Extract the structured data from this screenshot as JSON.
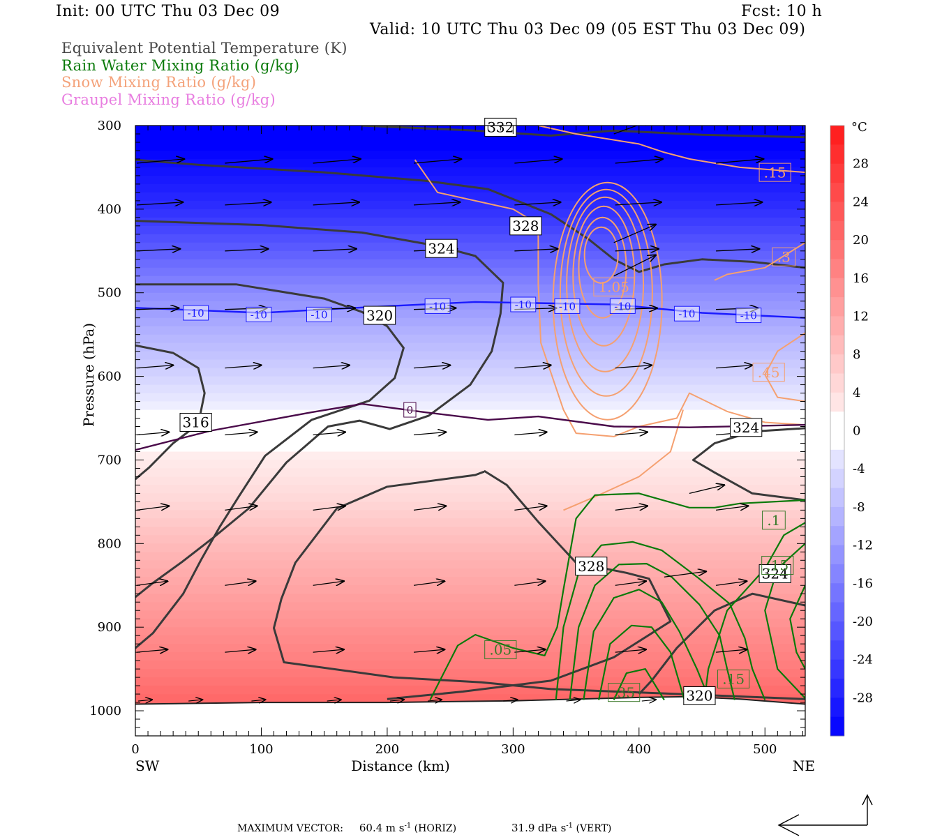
{
  "header": {
    "init": "Init: 00 UTC Thu 03 Dec 09",
    "fcst": "Fcst:   10 h",
    "valid": "Valid: 10 UTC Thu 03 Dec 09 (05 EST Thu 03 Dec 09)"
  },
  "legend": [
    {
      "text": "Equivalent Potential Temperature (K)",
      "color": "#444444"
    },
    {
      "text": "Rain Water Mixing Ratio (g/kg)",
      "color": "#0a7a0a"
    },
    {
      "text": "Snow Mixing Ratio (g/kg)",
      "color": "#f4a27a"
    },
    {
      "text": "Graupel Mixing Ratio (g/kg)",
      "color": "#e87ee0"
    }
  ],
  "footer": {
    "max_vector_label": "MAXIMUM VECTOR:",
    "horiz_value": "60.4",
    "horiz_unit": "m s",
    "horiz_exp": "-1",
    "horiz_tag": "(HORIZ)",
    "vert_value": "31.9",
    "vert_unit": "dPa s",
    "vert_exp": "-1",
    "vert_tag": "(VERT)"
  },
  "chart_data": {
    "type": "heatmap",
    "title": "",
    "xlabel": "Distance (km)",
    "ylabel": "Pressure (hPa)",
    "xlim": [
      0,
      532
    ],
    "ylim": [
      1030,
      300
    ],
    "x_ticks": [
      0,
      100,
      200,
      300,
      400,
      500
    ],
    "y_ticks": [
      300,
      400,
      500,
      600,
      700,
      800,
      900,
      1000
    ],
    "x_endpoints": {
      "left": "SW",
      "right": "NE"
    },
    "colorbar": {
      "unit": "°C",
      "ticks": [
        28,
        24,
        20,
        16,
        12,
        8,
        4,
        0,
        -4,
        -8,
        -12,
        -16,
        -20,
        -24,
        -28
      ],
      "range": [
        -32,
        32
      ],
      "cold_color": "#0000ff",
      "warm_color": "#ff2020"
    },
    "temperature_field": [
      {
        "p": 300,
        "t": -34
      },
      {
        "p": 350,
        "t": -30
      },
      {
        "p": 400,
        "t": -26
      },
      {
        "p": 450,
        "t": -20
      },
      {
        "p": 500,
        "t": -14
      },
      {
        "p": 550,
        "t": -9
      },
      {
        "p": 600,
        "t": -5
      },
      {
        "p": 640,
        "t": -1
      },
      {
        "p": 680,
        "t": 1
      },
      {
        "p": 750,
        "t": 5
      },
      {
        "p": 800,
        "t": 9
      },
      {
        "p": 850,
        "t": 12
      },
      {
        "p": 900,
        "t": 15
      },
      {
        "p": 950,
        "t": 18
      },
      {
        "p": 990,
        "t": 21
      }
    ],
    "isotherms": [
      {
        "value": "-10",
        "color": "#1a1aff",
        "points": [
          [
            0,
            518
          ],
          [
            100,
            524
          ],
          [
            200,
            516
          ],
          [
            270,
            511
          ],
          [
            380,
            514
          ],
          [
            450,
            524
          ],
          [
            532,
            530
          ]
        ],
        "labels": [
          [
            48,
            524
          ],
          [
            98,
            526
          ],
          [
            146,
            526
          ],
          [
            240,
            516
          ],
          [
            308,
            514
          ],
          [
            343,
            516
          ],
          [
            387,
            516
          ],
          [
            438,
            525
          ],
          [
            487,
            527
          ]
        ]
      },
      {
        "value": "0",
        "color": "#4a0a4a",
        "points": [
          [
            0,
            688
          ],
          [
            60,
            665
          ],
          [
            140,
            643
          ],
          [
            180,
            633
          ],
          [
            230,
            643
          ],
          [
            280,
            652
          ],
          [
            320,
            648
          ],
          [
            380,
            660
          ],
          [
            440,
            661
          ],
          [
            532,
            658
          ]
        ],
        "labels": [
          [
            218,
            640
          ]
        ]
      }
    ],
    "theta_e_contours": [
      {
        "value": "332",
        "label_at": [
          290,
          302
        ]
      },
      {
        "value": "328",
        "label_at": [
          310,
          420
        ]
      },
      {
        "value": "324",
        "label_at": [
          243,
          447
        ]
      },
      {
        "value": "320",
        "label_at": [
          194,
          527
        ]
      },
      {
        "value": "316",
        "label_at": [
          48,
          655
        ]
      },
      {
        "value": "324",
        "label_at": [
          485,
          661
        ]
      },
      {
        "value": "328",
        "label_at": [
          362,
          827
        ]
      },
      {
        "value": "324",
        "label_at": [
          508,
          836
        ]
      },
      {
        "value": "320",
        "label_at": [
          448,
          982
        ]
      }
    ],
    "snow_labels": [
      {
        "text": ".15",
        "at": [
          508,
          356
        ]
      },
      {
        "text": ".3",
        "at": [
          515,
          457
        ]
      },
      {
        "text": "1.05",
        "at": [
          380,
          493
        ]
      },
      {
        "text": ".45",
        "at": [
          503,
          595
        ]
      }
    ],
    "rain_labels": [
      {
        "text": ".1",
        "at": [
          507,
          772
        ]
      },
      {
        "text": ".15",
        "at": [
          510,
          826
        ]
      },
      {
        "text": ".05",
        "at": [
          290,
          927
        ]
      },
      {
        "text": ".35",
        "at": [
          388,
          978
        ]
      },
      {
        "text": ".15",
        "at": [
          475,
          962
        ]
      }
    ],
    "max_vector_horiz": 60.4,
    "max_vector_vert": 31.9
  }
}
